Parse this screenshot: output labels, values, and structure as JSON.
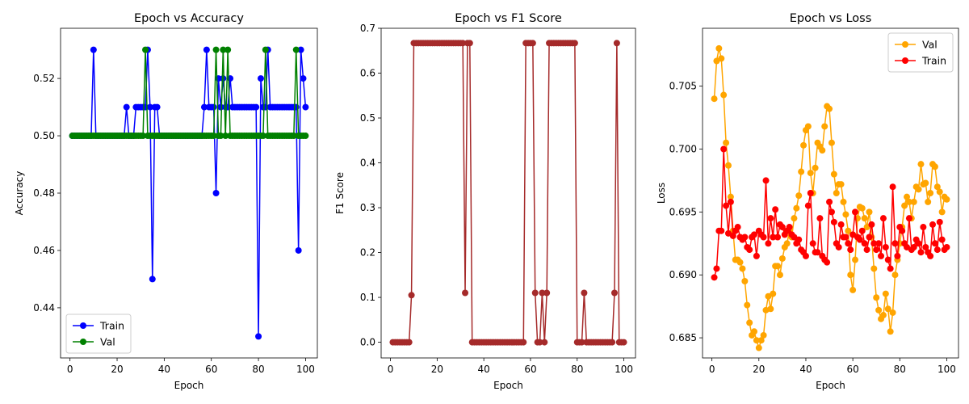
{
  "chart_data": [
    {
      "type": "line",
      "title": "Epoch vs Accuracy",
      "xlabel": "Epoch",
      "ylabel": "Accuracy",
      "xlim": [
        -4,
        105
      ],
      "ylim": [
        0.4225,
        0.5375
      ],
      "xticks": [
        0,
        20,
        40,
        60,
        80,
        100
      ],
      "yticks": [
        0.44,
        0.46,
        0.48,
        0.5,
        0.52
      ],
      "ytick_labels": [
        "0.44",
        "0.46",
        "0.48",
        "0.50",
        "0.52"
      ],
      "legend": {
        "position": "lower-left"
      },
      "series": [
        {
          "name": "Train",
          "color": "#0000ff",
          "x": [
            1,
            2,
            3,
            4,
            5,
            6,
            7,
            8,
            9,
            10,
            11,
            12,
            13,
            14,
            15,
            16,
            17,
            18,
            19,
            20,
            21,
            22,
            23,
            24,
            25,
            26,
            27,
            28,
            29,
            30,
            31,
            32,
            33,
            34,
            35,
            36,
            37,
            38,
            39,
            40,
            41,
            42,
            43,
            44,
            45,
            46,
            47,
            48,
            49,
            50,
            51,
            52,
            53,
            54,
            55,
            56,
            57,
            58,
            59,
            60,
            61,
            62,
            63,
            64,
            65,
            66,
            67,
            68,
            69,
            70,
            71,
            72,
            73,
            74,
            75,
            76,
            77,
            78,
            79,
            80,
            81,
            82,
            83,
            84,
            85,
            86,
            87,
            88,
            89,
            90,
            91,
            92,
            93,
            94,
            95,
            96,
            97,
            98,
            99,
            100
          ],
          "y": [
            0.5,
            0.5,
            0.5,
            0.5,
            0.5,
            0.5,
            0.5,
            0.5,
            0.5,
            0.53,
            0.5,
            0.5,
            0.5,
            0.5,
            0.5,
            0.5,
            0.5,
            0.5,
            0.5,
            0.5,
            0.5,
            0.5,
            0.5,
            0.51,
            0.5,
            0.5,
            0.5,
            0.51,
            0.51,
            0.51,
            0.51,
            0.51,
            0.53,
            0.51,
            0.45,
            0.51,
            0.51,
            0.5,
            0.5,
            0.5,
            0.5,
            0.5,
            0.5,
            0.5,
            0.5,
            0.5,
            0.5,
            0.5,
            0.5,
            0.5,
            0.5,
            0.5,
            0.5,
            0.5,
            0.5,
            0.5,
            0.51,
            0.53,
            0.51,
            0.51,
            0.51,
            0.48,
            0.52,
            0.51,
            0.52,
            0.51,
            0.51,
            0.52,
            0.51,
            0.51,
            0.51,
            0.51,
            0.51,
            0.51,
            0.51,
            0.51,
            0.51,
            0.51,
            0.51,
            0.43,
            0.52,
            0.51,
            0.51,
            0.53,
            0.51,
            0.51,
            0.51,
            0.51,
            0.51,
            0.51,
            0.51,
            0.51,
            0.51,
            0.51,
            0.51,
            0.51,
            0.46,
            0.53,
            0.52,
            0.51
          ]
        },
        {
          "name": "Val",
          "color": "#008000",
          "x": [
            1,
            2,
            3,
            4,
            5,
            6,
            7,
            8,
            9,
            10,
            11,
            12,
            13,
            14,
            15,
            16,
            17,
            18,
            19,
            20,
            21,
            22,
            23,
            24,
            25,
            26,
            27,
            28,
            29,
            30,
            31,
            32,
            33,
            34,
            35,
            36,
            37,
            38,
            39,
            40,
            41,
            42,
            43,
            44,
            45,
            46,
            47,
            48,
            49,
            50,
            51,
            52,
            53,
            54,
            55,
            56,
            57,
            58,
            59,
            60,
            61,
            62,
            63,
            64,
            65,
            66,
            67,
            68,
            69,
            70,
            71,
            72,
            73,
            74,
            75,
            76,
            77,
            78,
            79,
            80,
            81,
            82,
            83,
            84,
            85,
            86,
            87,
            88,
            89,
            90,
            91,
            92,
            93,
            94,
            95,
            96,
            97,
            98,
            99,
            100
          ],
          "y": [
            0.5,
            0.5,
            0.5,
            0.5,
            0.5,
            0.5,
            0.5,
            0.5,
            0.5,
            0.5,
            0.5,
            0.5,
            0.5,
            0.5,
            0.5,
            0.5,
            0.5,
            0.5,
            0.5,
            0.5,
            0.5,
            0.5,
            0.5,
            0.5,
            0.5,
            0.5,
            0.5,
            0.5,
            0.5,
            0.5,
            0.5,
            0.53,
            0.5,
            0.5,
            0.5,
            0.5,
            0.5,
            0.5,
            0.5,
            0.5,
            0.5,
            0.5,
            0.5,
            0.5,
            0.5,
            0.5,
            0.5,
            0.5,
            0.5,
            0.5,
            0.5,
            0.5,
            0.5,
            0.5,
            0.5,
            0.5,
            0.5,
            0.5,
            0.5,
            0.5,
            0.5,
            0.53,
            0.5,
            0.5,
            0.53,
            0.5,
            0.53,
            0.5,
            0.5,
            0.5,
            0.5,
            0.5,
            0.5,
            0.5,
            0.5,
            0.5,
            0.5,
            0.5,
            0.5,
            0.5,
            0.5,
            0.5,
            0.53,
            0.5,
            0.5,
            0.5,
            0.5,
            0.5,
            0.5,
            0.5,
            0.5,
            0.5,
            0.5,
            0.5,
            0.5,
            0.53,
            0.5,
            0.5,
            0.5,
            0.5
          ]
        }
      ]
    },
    {
      "type": "line",
      "title": "Epoch vs F1 Score",
      "xlabel": "Epoch",
      "ylabel": "F1 Score",
      "xlim": [
        -4,
        105
      ],
      "ylim": [
        -0.035,
        0.7
      ],
      "xticks": [
        0,
        20,
        40,
        60,
        80,
        100
      ],
      "yticks": [
        0.0,
        0.1,
        0.2,
        0.3,
        0.4,
        0.5,
        0.6,
        0.7
      ],
      "ytick_labels": [
        "0.0",
        "0.1",
        "0.2",
        "0.3",
        "0.4",
        "0.5",
        "0.6",
        "0.7"
      ],
      "series": [
        {
          "name": "",
          "color": "#a52a2a",
          "x": [
            1,
            2,
            3,
            4,
            5,
            6,
            7,
            8,
            9,
            10,
            11,
            12,
            13,
            14,
            15,
            16,
            17,
            18,
            19,
            20,
            21,
            22,
            23,
            24,
            25,
            26,
            27,
            28,
            29,
            30,
            31,
            32,
            33,
            34,
            35,
            36,
            37,
            38,
            39,
            40,
            41,
            42,
            43,
            44,
            45,
            46,
            47,
            48,
            49,
            50,
            51,
            52,
            53,
            54,
            55,
            56,
            57,
            58,
            59,
            60,
            61,
            62,
            63,
            64,
            65,
            66,
            67,
            68,
            69,
            70,
            71,
            72,
            73,
            74,
            75,
            76,
            77,
            78,
            79,
            80,
            81,
            82,
            83,
            84,
            85,
            86,
            87,
            88,
            89,
            90,
            91,
            92,
            93,
            94,
            95,
            96,
            97,
            98,
            99,
            100
          ],
          "y": [
            0,
            0,
            0,
            0,
            0,
            0,
            0,
            0,
            0.105,
            0.667,
            0.667,
            0.667,
            0.667,
            0.667,
            0.667,
            0.667,
            0.667,
            0.667,
            0.667,
            0.667,
            0.667,
            0.667,
            0.667,
            0.667,
            0.667,
            0.667,
            0.667,
            0.667,
            0.667,
            0.667,
            0.667,
            0.11,
            0.667,
            0.667,
            0,
            0,
            0,
            0,
            0,
            0,
            0,
            0,
            0,
            0,
            0,
            0,
            0,
            0,
            0,
            0,
            0,
            0,
            0,
            0,
            0,
            0,
            0,
            0.667,
            0.667,
            0.667,
            0.667,
            0.11,
            0,
            0,
            0.11,
            0,
            0.11,
            0.667,
            0.667,
            0.667,
            0.667,
            0.667,
            0.667,
            0.667,
            0.667,
            0.667,
            0.667,
            0.667,
            0.667,
            0,
            0,
            0,
            0.11,
            0,
            0,
            0,
            0,
            0,
            0,
            0,
            0,
            0,
            0,
            0,
            0,
            0.11,
            0.667,
            0,
            0,
            0
          ]
        }
      ]
    },
    {
      "type": "line",
      "title": "Epoch vs Loss",
      "xlabel": "Epoch",
      "ylabel": "Loss",
      "xlim": [
        -4,
        105
      ],
      "ylim": [
        0.6834,
        0.7096
      ],
      "xticks": [
        0,
        20,
        40,
        60,
        80,
        100
      ],
      "yticks": [
        0.685,
        0.69,
        0.695,
        0.7,
        0.705
      ],
      "ytick_labels": [
        "0.685",
        "0.690",
        "0.695",
        "0.700",
        "0.705"
      ],
      "legend": {
        "position": "top-right"
      },
      "series": [
        {
          "name": "Val",
          "color": "#ffa500",
          "x": [
            1,
            2,
            3,
            4,
            5,
            6,
            7,
            8,
            9,
            10,
            11,
            12,
            13,
            14,
            15,
            16,
            17,
            18,
            19,
            20,
            21,
            22,
            23,
            24,
            25,
            26,
            27,
            28,
            29,
            30,
            31,
            32,
            33,
            34,
            35,
            36,
            37,
            38,
            39,
            40,
            41,
            42,
            43,
            44,
            45,
            46,
            47,
            48,
            49,
            50,
            51,
            52,
            53,
            54,
            55,
            56,
            57,
            58,
            59,
            60,
            61,
            62,
            63,
            64,
            65,
            66,
            67,
            68,
            69,
            70,
            71,
            72,
            73,
            74,
            75,
            76,
            77,
            78,
            79,
            80,
            81,
            82,
            83,
            84,
            85,
            86,
            87,
            88,
            89,
            90,
            91,
            92,
            93,
            94,
            95,
            96,
            97,
            98,
            99,
            100
          ],
          "y": [
            0.704,
            0.707,
            0.708,
            0.7072,
            0.7043,
            0.7005,
            0.6987,
            0.6962,
            0.6935,
            0.6912,
            0.6912,
            0.691,
            0.6905,
            0.6895,
            0.6876,
            0.6862,
            0.6852,
            0.6855,
            0.6848,
            0.6842,
            0.6848,
            0.6852,
            0.6872,
            0.6883,
            0.6873,
            0.6885,
            0.6907,
            0.6907,
            0.69,
            0.6913,
            0.6922,
            0.6925,
            0.6935,
            0.693,
            0.6945,
            0.6953,
            0.6963,
            0.6982,
            0.7003,
            0.7015,
            0.7018,
            0.6981,
            0.6965,
            0.6985,
            0.7005,
            0.7002,
            0.6999,
            0.7018,
            0.7034,
            0.7032,
            0.7005,
            0.698,
            0.6965,
            0.6972,
            0.6972,
            0.6958,
            0.6948,
            0.6935,
            0.69,
            0.6888,
            0.6912,
            0.6945,
            0.6954,
            0.6953,
            0.6945,
            0.6938,
            0.695,
            0.693,
            0.6905,
            0.6882,
            0.6872,
            0.6865,
            0.6868,
            0.6885,
            0.6873,
            0.6855,
            0.687,
            0.69,
            0.6912,
            0.6925,
            0.6938,
            0.6955,
            0.6962,
            0.6958,
            0.6945,
            0.6958,
            0.697,
            0.6968,
            0.6988,
            0.6972,
            0.6973,
            0.6958,
            0.6965,
            0.6988,
            0.6986,
            0.697,
            0.6966,
            0.695,
            0.6962,
            0.696
          ]
        },
        {
          "name": "Train",
          "color": "#ff0000",
          "x": [
            1,
            2,
            3,
            4,
            5,
            6,
            7,
            8,
            9,
            10,
            11,
            12,
            13,
            14,
            15,
            16,
            17,
            18,
            19,
            20,
            21,
            22,
            23,
            24,
            25,
            26,
            27,
            28,
            29,
            30,
            31,
            32,
            33,
            34,
            35,
            36,
            37,
            38,
            39,
            40,
            41,
            42,
            43,
            44,
            45,
            46,
            47,
            48,
            49,
            50,
            51,
            52,
            53,
            54,
            55,
            56,
            57,
            58,
            59,
            60,
            61,
            62,
            63,
            64,
            65,
            66,
            67,
            68,
            69,
            70,
            71,
            72,
            73,
            74,
            75,
            76,
            77,
            78,
            79,
            80,
            81,
            82,
            83,
            84,
            85,
            86,
            87,
            88,
            89,
            90,
            91,
            92,
            93,
            94,
            95,
            96,
            97,
            98,
            99,
            100
          ],
          "y": [
            0.6898,
            0.6905,
            0.6935,
            0.6935,
            0.7,
            0.6955,
            0.6933,
            0.6958,
            0.6931,
            0.6935,
            0.6938,
            0.693,
            0.6928,
            0.693,
            0.6922,
            0.692,
            0.693,
            0.6932,
            0.6915,
            0.6935,
            0.6932,
            0.693,
            0.6975,
            0.6925,
            0.6945,
            0.693,
            0.6952,
            0.693,
            0.694,
            0.6938,
            0.6932,
            0.6935,
            0.6938,
            0.6932,
            0.693,
            0.6925,
            0.6928,
            0.692,
            0.6918,
            0.6915,
            0.6955,
            0.6965,
            0.6925,
            0.6918,
            0.6918,
            0.6945,
            0.6915,
            0.6912,
            0.691,
            0.6958,
            0.695,
            0.6942,
            0.6925,
            0.6922,
            0.694,
            0.693,
            0.693,
            0.6925,
            0.692,
            0.6932,
            0.695,
            0.693,
            0.6928,
            0.6935,
            0.6925,
            0.692,
            0.693,
            0.694,
            0.6925,
            0.692,
            0.6925,
            0.6915,
            0.6945,
            0.6922,
            0.6912,
            0.6905,
            0.697,
            0.6925,
            0.6915,
            0.6938,
            0.6935,
            0.6925,
            0.6922,
            0.6945,
            0.692,
            0.6922,
            0.6928,
            0.6925,
            0.6918,
            0.6938,
            0.6922,
            0.6918,
            0.6915,
            0.694,
            0.6925,
            0.692,
            0.6942,
            0.6928,
            0.692,
            0.6922
          ]
        }
      ]
    }
  ]
}
